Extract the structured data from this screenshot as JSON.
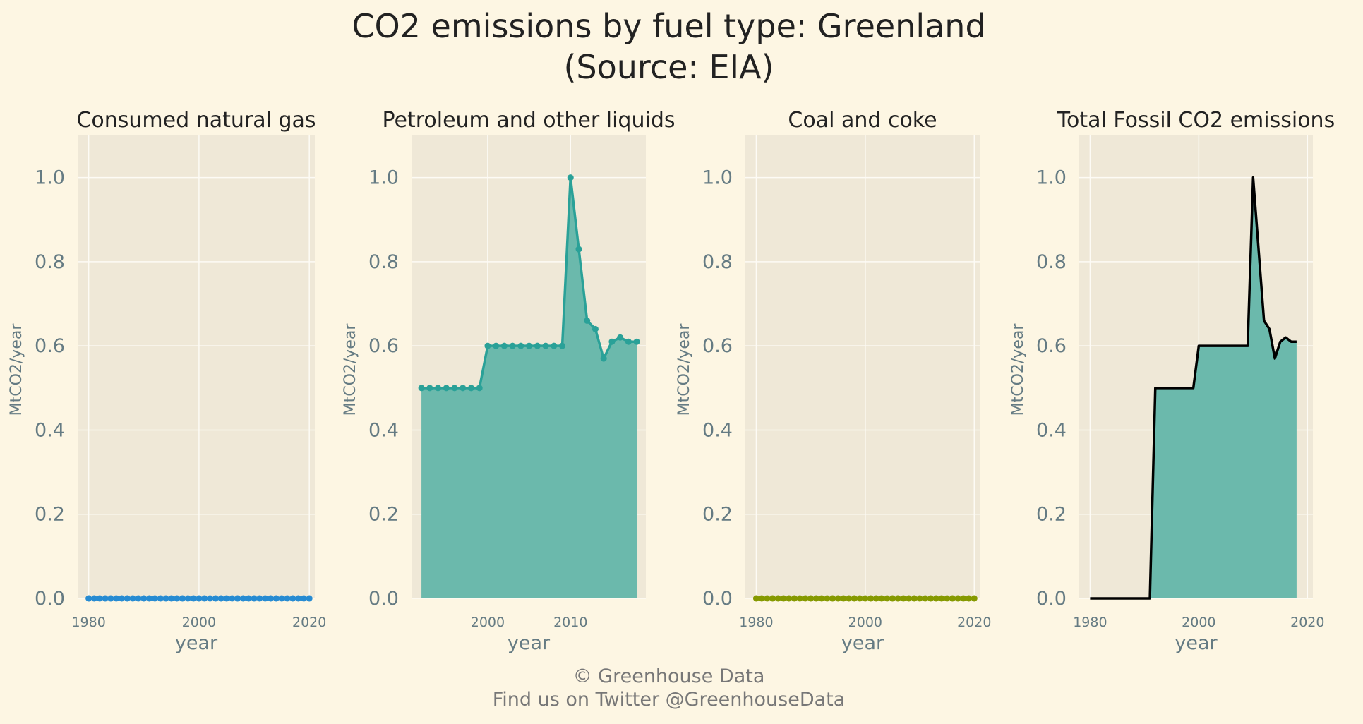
{
  "page": {
    "title_line1": "CO2 emissions by fuel type: Greenland",
    "title_line2": "(Source: EIA)",
    "footer_line1": "© Greenhouse Data",
    "footer_line2": "Find us on Twitter @GreenhouseData"
  },
  "colors": {
    "background": "#fdf6e3",
    "plot_background": "#efe8d7",
    "grid": "#fdfbf5",
    "gas": "#268bd2",
    "petroleum": "#2aa198",
    "petroleum_fill": "#6bb9ac",
    "coal": "#859900",
    "total_line": "#000000",
    "total_fill": "#6bb9ac"
  },
  "chart_data": [
    {
      "type": "line",
      "title": "Consumed natural gas",
      "xlabel": "year",
      "ylabel": "MtCO2/year",
      "xlim": [
        1978,
        2021
      ],
      "ylim": [
        0,
        1.1
      ],
      "xticks": [
        1980,
        2000,
        2020
      ],
      "yticks": [
        0.0,
        0.2,
        0.4,
        0.6,
        0.8,
        1.0
      ],
      "series": [
        {
          "name": "Consumed natural gas",
          "color": "gas",
          "markers": true,
          "fill": false,
          "x": [
            1980,
            1981,
            1982,
            1983,
            1984,
            1985,
            1986,
            1987,
            1988,
            1989,
            1990,
            1991,
            1992,
            1993,
            1994,
            1995,
            1996,
            1997,
            1998,
            1999,
            2000,
            2001,
            2002,
            2003,
            2004,
            2005,
            2006,
            2007,
            2008,
            2009,
            2010,
            2011,
            2012,
            2013,
            2014,
            2015,
            2016,
            2017,
            2018,
            2019,
            2020
          ],
          "y": [
            0,
            0,
            0,
            0,
            0,
            0,
            0,
            0,
            0,
            0,
            0,
            0,
            0,
            0,
            0,
            0,
            0,
            0,
            0,
            0,
            0,
            0,
            0,
            0,
            0,
            0,
            0,
            0,
            0,
            0,
            0,
            0,
            0,
            0,
            0,
            0,
            0,
            0,
            0,
            0,
            0
          ]
        }
      ]
    },
    {
      "type": "area",
      "title": "Petroleum and other liquids",
      "xlabel": "year",
      "ylabel": "MtCO2/year",
      "xlim": [
        1990.8,
        2019.1
      ],
      "ylim": [
        0,
        1.1
      ],
      "xticks": [
        2000,
        2010
      ],
      "yticks": [
        0.0,
        0.2,
        0.4,
        0.6,
        0.8,
        1.0
      ],
      "series": [
        {
          "name": "Petroleum and other liquids",
          "color": "petroleum",
          "fill_color": "petroleum_fill",
          "markers": true,
          "fill": true,
          "x": [
            1992,
            1993,
            1994,
            1995,
            1996,
            1997,
            1998,
            1999,
            2000,
            2001,
            2002,
            2003,
            2004,
            2005,
            2006,
            2007,
            2008,
            2009,
            2010,
            2011,
            2012,
            2013,
            2014,
            2015,
            2016,
            2017,
            2018
          ],
          "y": [
            0.5,
            0.5,
            0.5,
            0.5,
            0.5,
            0.5,
            0.5,
            0.5,
            0.6,
            0.6,
            0.6,
            0.6,
            0.6,
            0.6,
            0.6,
            0.6,
            0.6,
            0.6,
            1.0,
            0.83,
            0.66,
            0.64,
            0.57,
            0.61,
            0.62,
            0.61,
            0.61
          ]
        }
      ]
    },
    {
      "type": "line",
      "title": "Coal and coke",
      "xlabel": "year",
      "ylabel": "MtCO2/year",
      "xlim": [
        1978,
        2021
      ],
      "ylim": [
        0,
        1.1
      ],
      "xticks": [
        1980,
        2000,
        2020
      ],
      "yticks": [
        0.0,
        0.2,
        0.4,
        0.6,
        0.8,
        1.0
      ],
      "series": [
        {
          "name": "Coal and coke",
          "color": "coal",
          "markers": true,
          "fill": false,
          "x": [
            1980,
            1981,
            1982,
            1983,
            1984,
            1985,
            1986,
            1987,
            1988,
            1989,
            1990,
            1991,
            1992,
            1993,
            1994,
            1995,
            1996,
            1997,
            1998,
            1999,
            2000,
            2001,
            2002,
            2003,
            2004,
            2005,
            2006,
            2007,
            2008,
            2009,
            2010,
            2011,
            2012,
            2013,
            2014,
            2015,
            2016,
            2017,
            2018,
            2019,
            2020
          ],
          "y": [
            0,
            0,
            0,
            0,
            0,
            0,
            0,
            0,
            0,
            0,
            0,
            0,
            0,
            0,
            0,
            0,
            0,
            0,
            0,
            0,
            0,
            0,
            0,
            0,
            0,
            0,
            0,
            0,
            0,
            0,
            0,
            0,
            0,
            0,
            0,
            0,
            0,
            0,
            0,
            0,
            0
          ]
        }
      ]
    },
    {
      "type": "area",
      "title": "Total Fossil CO2 emissions",
      "xlabel": "year",
      "ylabel": "MtCO2/year",
      "xlim": [
        1978,
        2021
      ],
      "ylim": [
        0,
        1.1
      ],
      "xticks": [
        1980,
        2000,
        2020
      ],
      "yticks": [
        0.0,
        0.2,
        0.4,
        0.6,
        0.8,
        1.0
      ],
      "series": [
        {
          "name": "Total Fossil CO2 emissions",
          "color": "total_line",
          "fill_color": "total_fill",
          "markers": false,
          "fill": true,
          "x": [
            1980,
            1981,
            1982,
            1983,
            1984,
            1985,
            1986,
            1987,
            1988,
            1989,
            1990,
            1991,
            1992,
            1993,
            1994,
            1995,
            1996,
            1997,
            1998,
            1999,
            2000,
            2001,
            2002,
            2003,
            2004,
            2005,
            2006,
            2007,
            2008,
            2009,
            2010,
            2011,
            2012,
            2013,
            2014,
            2015,
            2016,
            2017,
            2018
          ],
          "y": [
            0,
            0,
            0,
            0,
            0,
            0,
            0,
            0,
            0,
            0,
            0,
            0,
            0.5,
            0.5,
            0.5,
            0.5,
            0.5,
            0.5,
            0.5,
            0.5,
            0.6,
            0.6,
            0.6,
            0.6,
            0.6,
            0.6,
            0.6,
            0.6,
            0.6,
            0.6,
            1.0,
            0.83,
            0.66,
            0.64,
            0.57,
            0.61,
            0.62,
            0.61,
            0.61
          ]
        }
      ]
    }
  ]
}
